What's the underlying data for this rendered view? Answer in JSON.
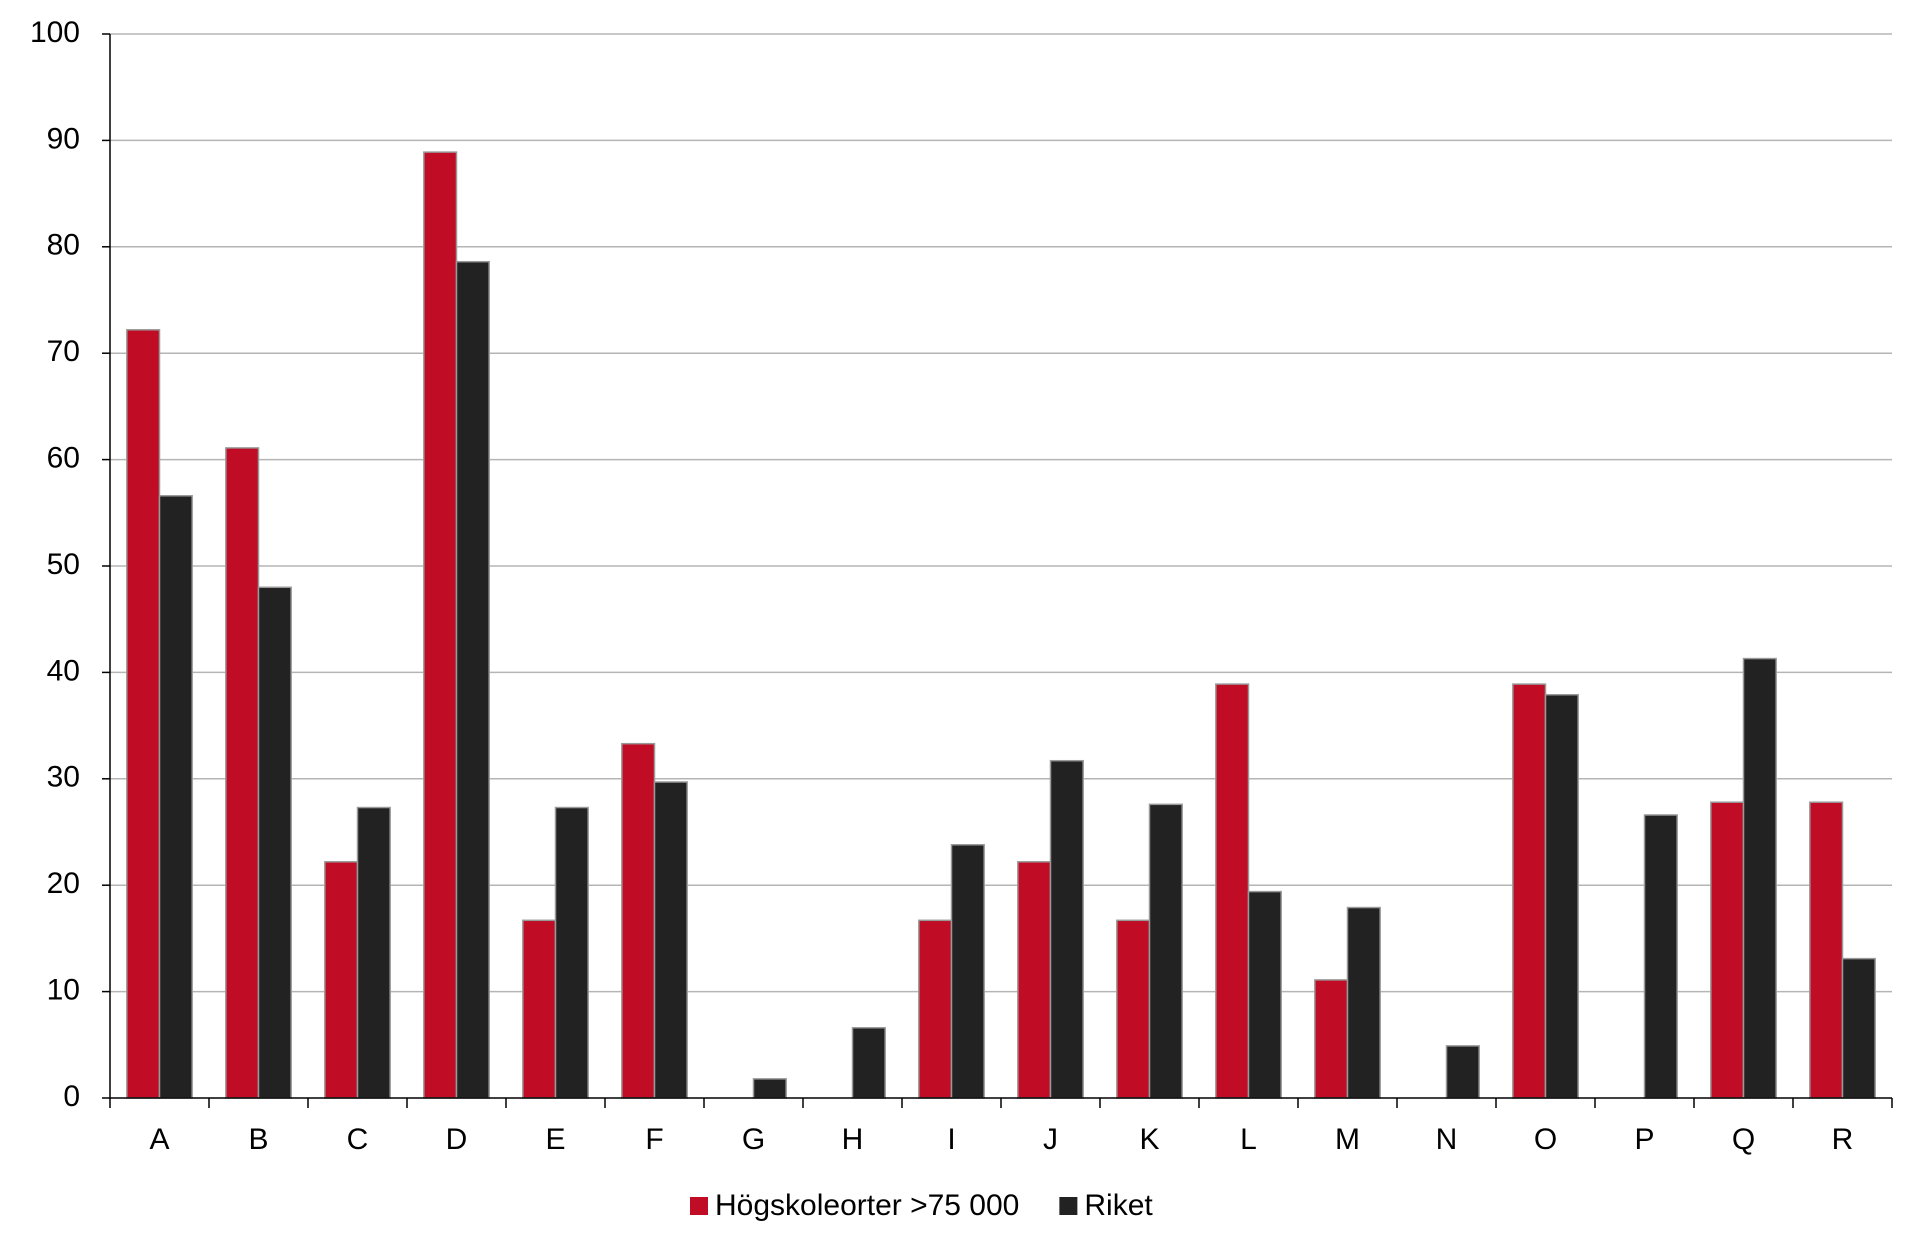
{
  "chart_data": {
    "type": "bar",
    "categories": [
      "A",
      "B",
      "C",
      "D",
      "E",
      "F",
      "G",
      "H",
      "I",
      "J",
      "K",
      "L",
      "M",
      "N",
      "O",
      "P",
      "Q",
      "R"
    ],
    "series": [
      {
        "name": "Högskoleorter >75 000",
        "color": "#c00c24",
        "values": [
          72.2,
          61.1,
          22.2,
          88.9,
          16.7,
          33.3,
          0,
          0,
          16.7,
          22.2,
          16.7,
          38.9,
          11.1,
          0,
          38.9,
          0,
          27.8,
          27.8
        ]
      },
      {
        "name": "Riket",
        "color": "#222222",
        "values": [
          56.6,
          48.0,
          27.3,
          78.6,
          27.3,
          29.7,
          1.8,
          6.6,
          23.8,
          31.7,
          27.6,
          19.4,
          17.9,
          4.9,
          37.9,
          26.6,
          41.3,
          13.1
        ]
      }
    ],
    "ylim": [
      0,
      100
    ],
    "yticks": [
      0,
      10,
      20,
      30,
      40,
      50,
      60,
      70,
      80,
      90,
      100
    ],
    "grid": true,
    "legend": "bottom"
  }
}
